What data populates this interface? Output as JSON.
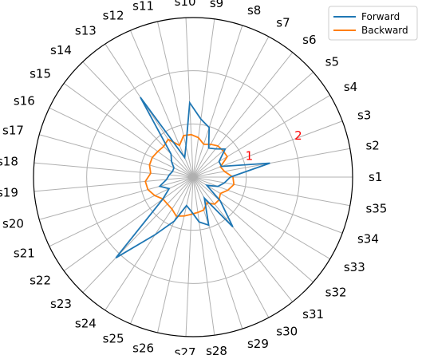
{
  "chart_data": {
    "type": "radar",
    "categories": [
      "s1",
      "s2",
      "s3",
      "s4",
      "s5",
      "s6",
      "s7",
      "s8",
      "s9",
      "s10",
      "s11",
      "s12",
      "s13",
      "s14",
      "s15",
      "s16",
      "s17",
      "s18",
      "s19",
      "s20",
      "s21",
      "s22",
      "s23",
      "s24",
      "s25",
      "s26",
      "s27",
      "s28",
      "s29",
      "s30",
      "s31",
      "s32",
      "s33",
      "s34",
      "s35"
    ],
    "r_max": 3,
    "ring_values": [
      1,
      2,
      3
    ],
    "ring_labels": [
      "1",
      "2"
    ],
    "ring_label_color": "#ff0000",
    "grid": true,
    "legend": {
      "position": "top-right"
    },
    "series": [
      {
        "name": "Forward",
        "color": "#1f77b4",
        "values": [
          0.7,
          1.47,
          0.57,
          0.57,
          0.8,
          0.68,
          0.62,
          0.98,
          1.1,
          1.4,
          0.6,
          0.4,
          1.8,
          0.6,
          0.5,
          0.4,
          0.4,
          0.45,
          0.5,
          0.65,
          0.5,
          0.7,
          2.1,
          1.3,
          0.9,
          0.55,
          0.65,
          0.85,
          0.95,
          0.45,
          1.2,
          0.68,
          0.3,
          0.5,
          0.6
        ]
      },
      {
        "name": "Backward",
        "color": "#ff7f0e",
        "values": [
          0.75,
          0.6,
          0.55,
          0.75,
          0.75,
          0.75,
          0.7,
          0.65,
          0.75,
          0.8,
          0.8,
          0.65,
          0.85,
          0.8,
          0.82,
          0.85,
          0.85,
          0.8,
          0.9,
          0.88,
          0.8,
          0.7,
          0.7,
          0.72,
          0.8,
          0.75,
          0.7,
          0.67,
          0.65,
          0.55,
          0.65,
          0.65,
          0.6,
          0.7,
          0.78
        ]
      }
    ]
  }
}
